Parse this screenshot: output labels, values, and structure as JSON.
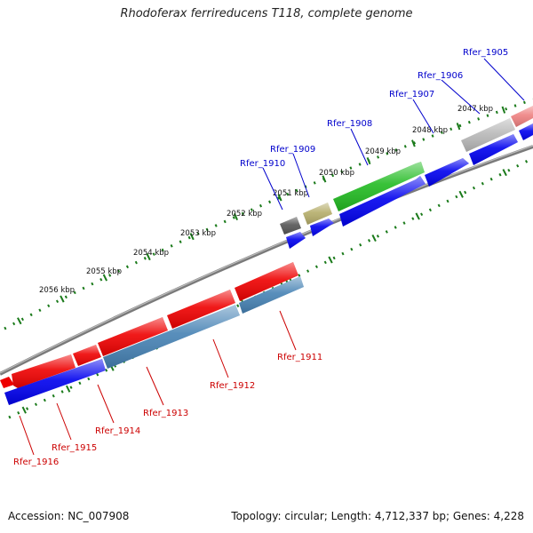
{
  "header": {
    "title": "Rhodoferax ferrireducens T118, complete genome"
  },
  "footer": {
    "accession": "Accession: NC_007908",
    "summary": "Topology: circular; Length: 4,712,337 bp; Genes: 4,228"
  },
  "colors": {
    "backbone": "#808080",
    "scale_ticks": "#1a7a1a",
    "forward_label": "#0000cc",
    "reverse_label": "#cc0000",
    "cds_blue": "#0000ee",
    "cds_red": "#ee0000",
    "cds_steelblue": "#4682b4",
    "cds_green": "#22bb22",
    "cds_olive": "#b5ad6a",
    "cds_darkgray": "#555555",
    "cds_silver": "#b8b8b8",
    "cds_pink": "#ee8080"
  },
  "scale_labels": [
    "2047 kbp",
    "2048 kbp",
    "2049 kbp",
    "2050 kbp",
    "2051 kbp",
    "2052 kbp",
    "2053 kbp",
    "2054 kbp",
    "2055 kbp",
    "2056 kbp"
  ],
  "genes_forward": [
    "Rfer_1905",
    "Rfer_1906",
    "Rfer_1907",
    "Rfer_1908",
    "Rfer_1909",
    "Rfer_1910"
  ],
  "genes_reverse": [
    "Rfer_1911",
    "Rfer_1912",
    "Rfer_1913",
    "Rfer_1914",
    "Rfer_1915",
    "Rfer_1916"
  ]
}
